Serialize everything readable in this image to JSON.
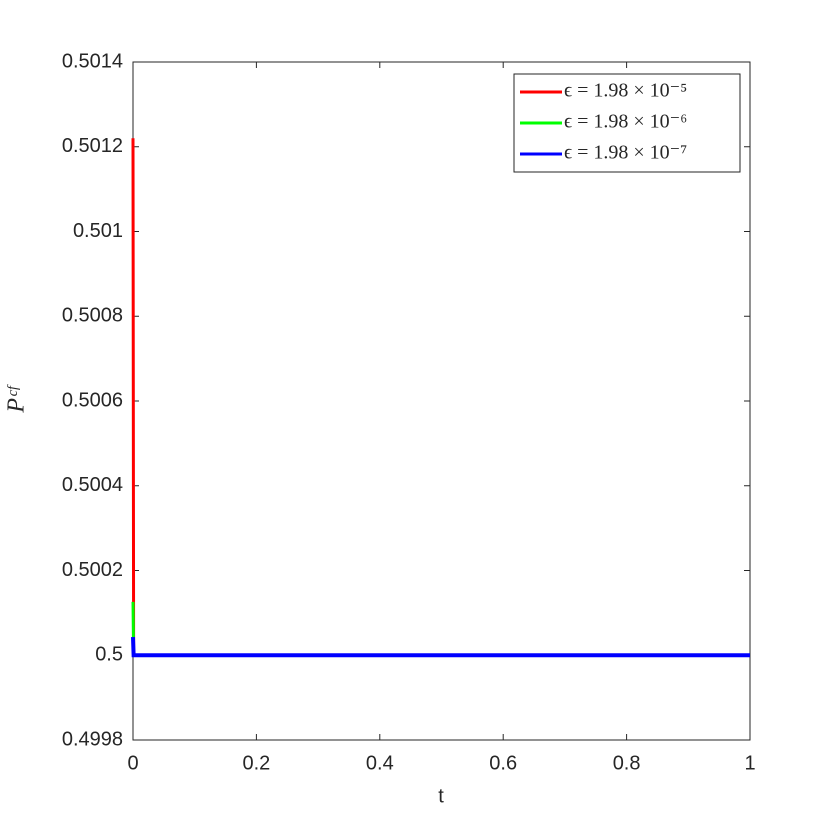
{
  "chart_data": {
    "type": "line",
    "xlabel": "t",
    "ylabel": "Pᶜᶠ",
    "x": [
      0,
      0.001,
      0.003,
      0.005,
      0.01,
      0.25,
      0.5,
      0.75,
      1
    ],
    "series": [
      {
        "name": "ϵ = 1.98 × 10⁻⁵",
        "color": "#ff0000",
        "values": [
          0.50122,
          0.5,
          0.5,
          0.5,
          0.5,
          0.5,
          0.5,
          0.5,
          0.5
        ]
      },
      {
        "name": "ϵ = 1.98 × 10⁻⁶",
        "color": "#00ff00",
        "values": [
          0.500126,
          0.5,
          0.5,
          0.5,
          0.5,
          0.5,
          0.5,
          0.5,
          0.5
        ]
      },
      {
        "name": "ϵ = 1.98 × 10⁻⁷",
        "color": "#0000ff",
        "values": [
          0.500043,
          0.5,
          0.5,
          0.5,
          0.5,
          0.5,
          0.5,
          0.5,
          0.5
        ]
      }
    ],
    "xlim": [
      0,
      1
    ],
    "xticks": [
      0,
      0.2,
      0.4,
      0.6,
      0.8,
      1
    ],
    "ylim": [
      0.4998,
      0.5014
    ],
    "yticks": [
      0.4998,
      0.5,
      0.5002,
      0.5004,
      0.5006,
      0.5008,
      0.501,
      0.5012,
      0.5014
    ],
    "grid": false,
    "legend": "upper-right"
  }
}
